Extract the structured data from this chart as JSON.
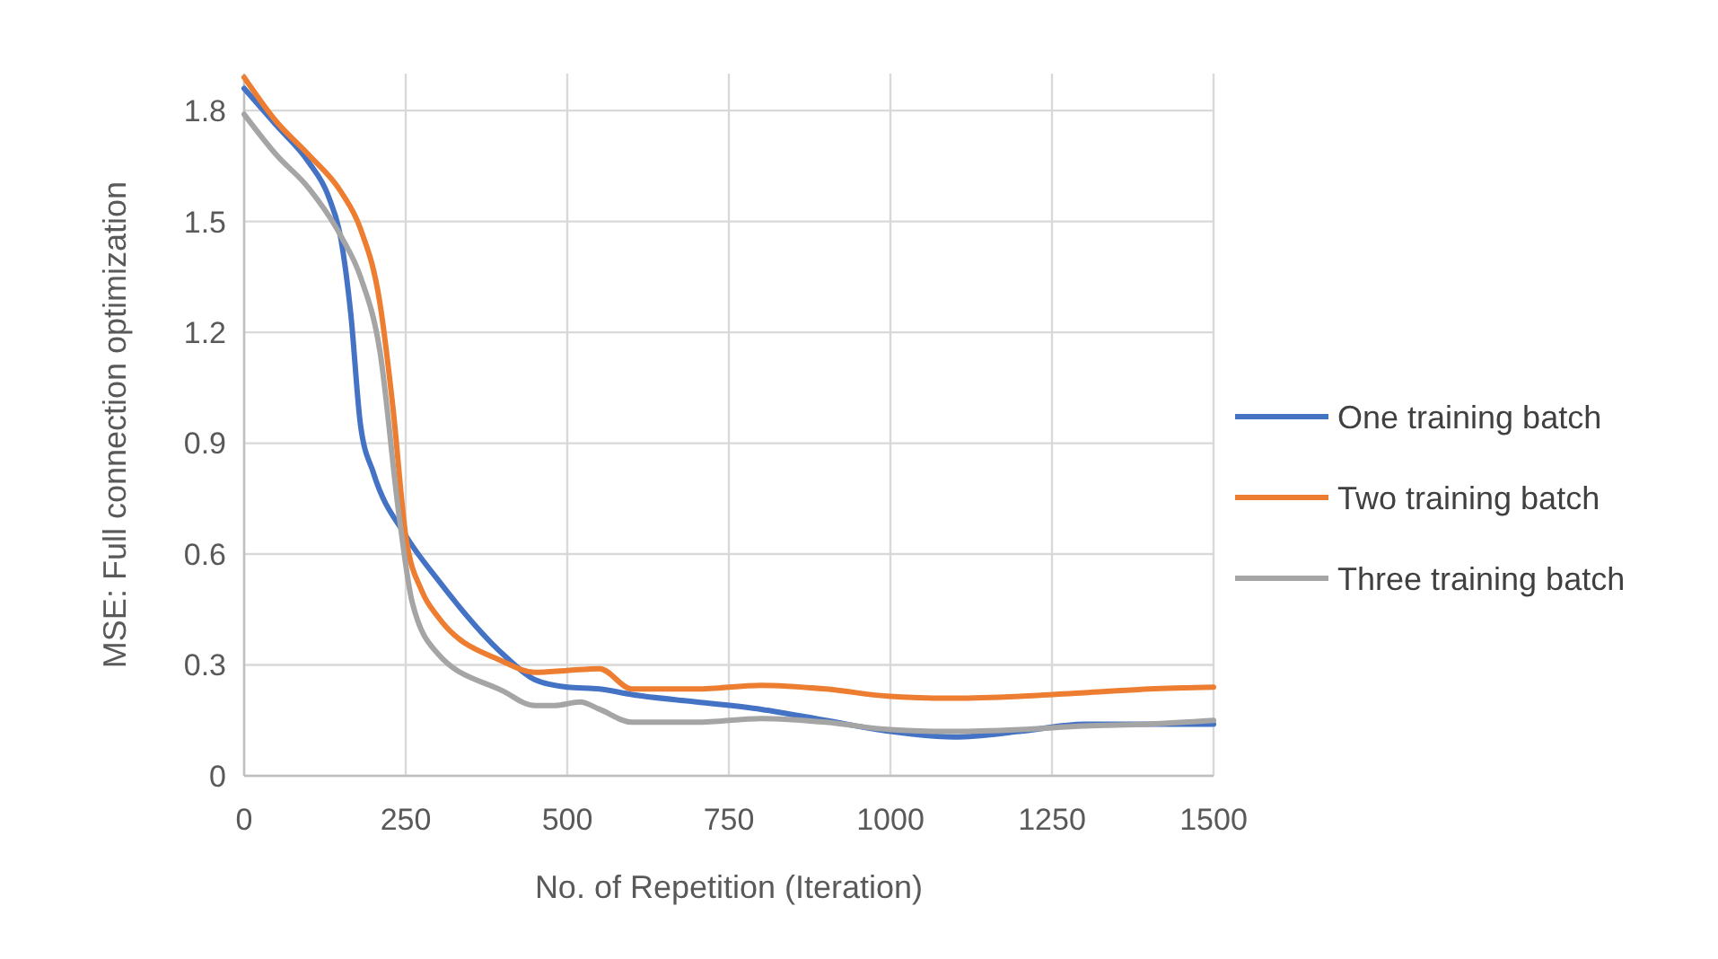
{
  "chart_data": {
    "type": "line",
    "xlabel": "No. of Repetition (Iteration)",
    "ylabel": "MSE: Full connection optimization",
    "xlim": [
      0,
      1500
    ],
    "xticks": [
      0,
      250,
      500,
      750,
      1000,
      1250,
      1500
    ],
    "ylim": [
      0,
      1.9
    ],
    "yticks": [
      0,
      0.3,
      0.6,
      0.9,
      1.2,
      1.5,
      1.8
    ],
    "grid": true,
    "legend": "right",
    "marker": "none",
    "line_style": "solid",
    "series": [
      {
        "name": "One training batch",
        "color": "#4472c4",
        "x": [
          0,
          50,
          100,
          130,
          150,
          165,
          180,
          200,
          250,
          300,
          400,
          450,
          500,
          550,
          600,
          700,
          800,
          900,
          1000,
          1100,
          1200,
          1300,
          1400,
          1500
        ],
        "values": [
          1.86,
          1.76,
          1.66,
          1.57,
          1.45,
          1.25,
          0.95,
          0.82,
          0.65,
          0.53,
          0.33,
          0.26,
          0.24,
          0.235,
          0.22,
          0.2,
          0.18,
          0.15,
          0.12,
          0.105,
          0.12,
          0.14,
          0.14,
          0.14
        ]
      },
      {
        "name": "Two training batch",
        "color": "#ed7d31",
        "x": [
          0,
          50,
          100,
          150,
          180,
          210,
          230,
          250,
          275,
          300,
          400,
          450,
          500,
          550,
          600,
          700,
          800,
          900,
          1000,
          1100,
          1200,
          1300,
          1400,
          1500
        ],
        "values": [
          1.89,
          1.77,
          1.68,
          1.58,
          1.48,
          1.28,
          1.0,
          0.65,
          0.5,
          0.43,
          0.31,
          0.28,
          0.285,
          0.29,
          0.235,
          0.235,
          0.245,
          0.235,
          0.215,
          0.21,
          0.215,
          0.225,
          0.235,
          0.24
        ]
      },
      {
        "name": "Three training batch",
        "color": "#a5a5a5",
        "x": [
          0,
          50,
          100,
          150,
          180,
          210,
          240,
          260,
          300,
          400,
          450,
          480,
          520,
          550,
          600,
          700,
          800,
          900,
          1000,
          1100,
          1200,
          1300,
          1400,
          1500
        ],
        "values": [
          1.79,
          1.68,
          1.59,
          1.46,
          1.35,
          1.15,
          0.7,
          0.47,
          0.33,
          0.23,
          0.19,
          0.19,
          0.2,
          0.18,
          0.145,
          0.145,
          0.155,
          0.145,
          0.125,
          0.12,
          0.125,
          0.135,
          0.14,
          0.15
        ]
      }
    ]
  }
}
